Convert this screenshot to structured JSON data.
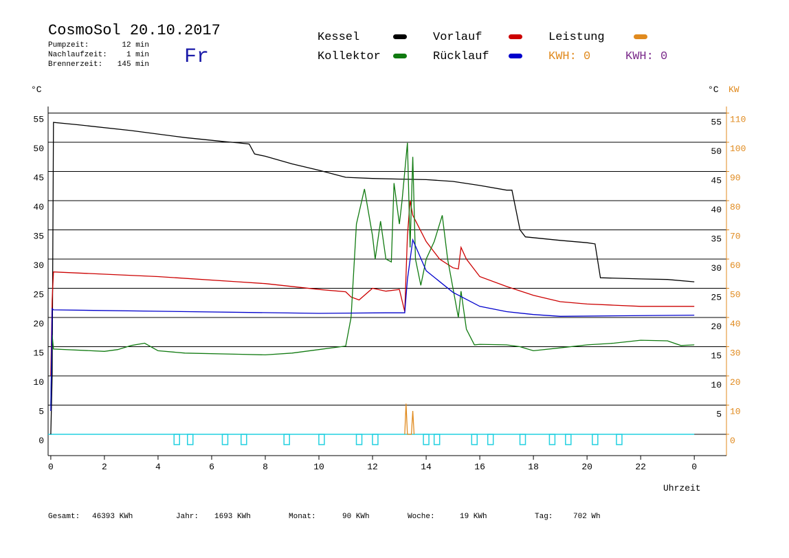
{
  "chart_data": {
    "type": "line",
    "title": "CosmoSol 20.10.2017",
    "weekday": "Fr",
    "info": [
      {
        "label": "Pumpzeit:",
        "value": "12 min"
      },
      {
        "label": "Nachlaufzeit:",
        "value": "1 min"
      },
      {
        "label": "Brennerzeit:",
        "value": "145 min"
      }
    ],
    "kwh_labels": [
      {
        "text": "KWH: 0",
        "color": "#e08a1e"
      },
      {
        "text": "KWH: 0",
        "color": "#7a2a8a"
      }
    ],
    "ylabel": "°C",
    "ylabel_right": "°C",
    "y2label": "KW",
    "xlabel": "Uhrzeit",
    "xlim": [
      -0.1,
      25.2
    ],
    "xticks": [
      0,
      2,
      4,
      6,
      8,
      10,
      12,
      14,
      16,
      18,
      20,
      22,
      {
        "value": 24,
        "label": "0"
      }
    ],
    "ylim": [
      -3.65,
      56.12
    ],
    "yticks": [
      0,
      5,
      10,
      15,
      20,
      25,
      30,
      35,
      40,
      45,
      50,
      55
    ],
    "yticks_right": [
      5,
      10,
      15,
      20,
      25,
      30,
      35,
      40,
      45,
      50,
      55
    ],
    "y2lim": [
      -7.3,
      112.24
    ],
    "y2ticks": [
      0,
      10,
      20,
      30,
      40,
      50,
      60,
      70,
      80,
      90,
      100,
      110
    ],
    "grid": true,
    "series": [
      {
        "name": "Kessel",
        "color": "#000000",
        "x": [
          0,
          0.05,
          0.1,
          1,
          3,
          5,
          6.5,
          7,
          7.4,
          7.6,
          8,
          9,
          10,
          11,
          12,
          13,
          14,
          15,
          16,
          17,
          17.2,
          17.5,
          17.7,
          19,
          20,
          20.3,
          20.5,
          22,
          23,
          24
        ],
        "values": [
          0,
          10,
          53.4,
          53,
          52,
          50.8,
          50.1,
          49.9,
          49.7,
          48,
          47.6,
          46.3,
          45.2,
          44,
          43.8,
          43.7,
          43.6,
          43.3,
          42.6,
          41.8,
          41.8,
          35,
          33.8,
          33.2,
          32.8,
          32.6,
          26.8,
          26.6,
          26.5,
          26.1
        ]
      },
      {
        "name": "Vorlauf",
        "color": "#cc0000",
        "x": [
          0,
          0.05,
          0.1,
          4,
          7,
          8,
          10,
          11,
          11.2,
          11.5,
          12,
          12.5,
          13,
          13.2,
          13.3,
          13.4,
          13.5,
          14,
          14.5,
          15,
          15.2,
          15.3,
          15.5,
          16,
          17,
          18,
          19,
          20,
          21,
          22,
          23,
          24
        ],
        "values": [
          10,
          23,
          27.8,
          27,
          26.1,
          25.8,
          24.8,
          24.4,
          23.5,
          23,
          25,
          24.5,
          24.8,
          21,
          34,
          40,
          37.5,
          33,
          30,
          28.5,
          28.3,
          32,
          30,
          27,
          25.3,
          23.8,
          22.7,
          22.3,
          22.1,
          21.9,
          21.9,
          21.9
        ]
      },
      {
        "name": "Leistung",
        "color": "#e08a1e",
        "axis": "y2",
        "x": [
          13.2,
          13.25,
          13.3,
          13.45,
          13.5,
          13.55
        ],
        "values": [
          0,
          10.5,
          0,
          0,
          8,
          0
        ]
      },
      {
        "name": "Kollektor",
        "color": "#107a10",
        "x": [
          0,
          0.05,
          0.1,
          2,
          2.5,
          3,
          3.5,
          4,
          5,
          7,
          8,
          9,
          10,
          11,
          11.2,
          11.4,
          11.7,
          12,
          12.1,
          12.3,
          12.5,
          12.7,
          12.8,
          13,
          13.1,
          13.3,
          13.4,
          13.5,
          13.6,
          13.8,
          14,
          14.3,
          14.6,
          14.8,
          15.2,
          15.3,
          15.5,
          15.8,
          16,
          17,
          17.5,
          18,
          19,
          20,
          21,
          22,
          23,
          23.5,
          24
        ],
        "values": [
          5,
          17,
          14.6,
          14.2,
          14.5,
          15.2,
          15.6,
          14.3,
          13.9,
          13.7,
          13.6,
          13.9,
          14.5,
          15.1,
          20,
          36,
          42,
          34,
          30,
          36.5,
          30,
          29.5,
          43,
          36,
          40,
          49.9,
          32,
          47.5,
          30,
          25.5,
          30,
          33,
          37.5,
          30,
          20,
          24.5,
          18,
          15.3,
          15.4,
          15.3,
          15,
          14.3,
          14.8,
          15.3,
          15.6,
          16.1,
          16,
          15.2,
          15.3
        ]
      },
      {
        "name": "Rücklauf",
        "color": "#0000cc",
        "x": [
          0,
          0.05,
          0.1,
          10,
          12.5,
          13.2,
          13.3,
          13.5,
          14,
          15,
          16,
          17,
          18,
          19,
          24
        ],
        "values": [
          4,
          21.5,
          21.3,
          20.7,
          20.8,
          20.8,
          26.5,
          33.3,
          28,
          24.3,
          21.9,
          21,
          20.5,
          20.2,
          20.4
        ]
      }
    ],
    "pump_on": [
      4.7,
      5.2,
      6.5,
      7.2,
      8.8,
      10.1,
      11.5,
      12.1,
      14.0,
      14.4,
      15.8,
      16.4,
      17.6,
      18.7,
      19.3,
      20.3,
      21.2
    ],
    "footer": [
      {
        "label": "Gesamt:",
        "value": "46393 KWh"
      },
      {
        "label": "Jahr:",
        "value": "1693 KWh"
      },
      {
        "label": "Monat:",
        "value": "90 KWh"
      },
      {
        "label": "Woche:",
        "value": "19 KWh"
      },
      {
        "label": "Tag:",
        "value": "702 Wh"
      }
    ]
  }
}
